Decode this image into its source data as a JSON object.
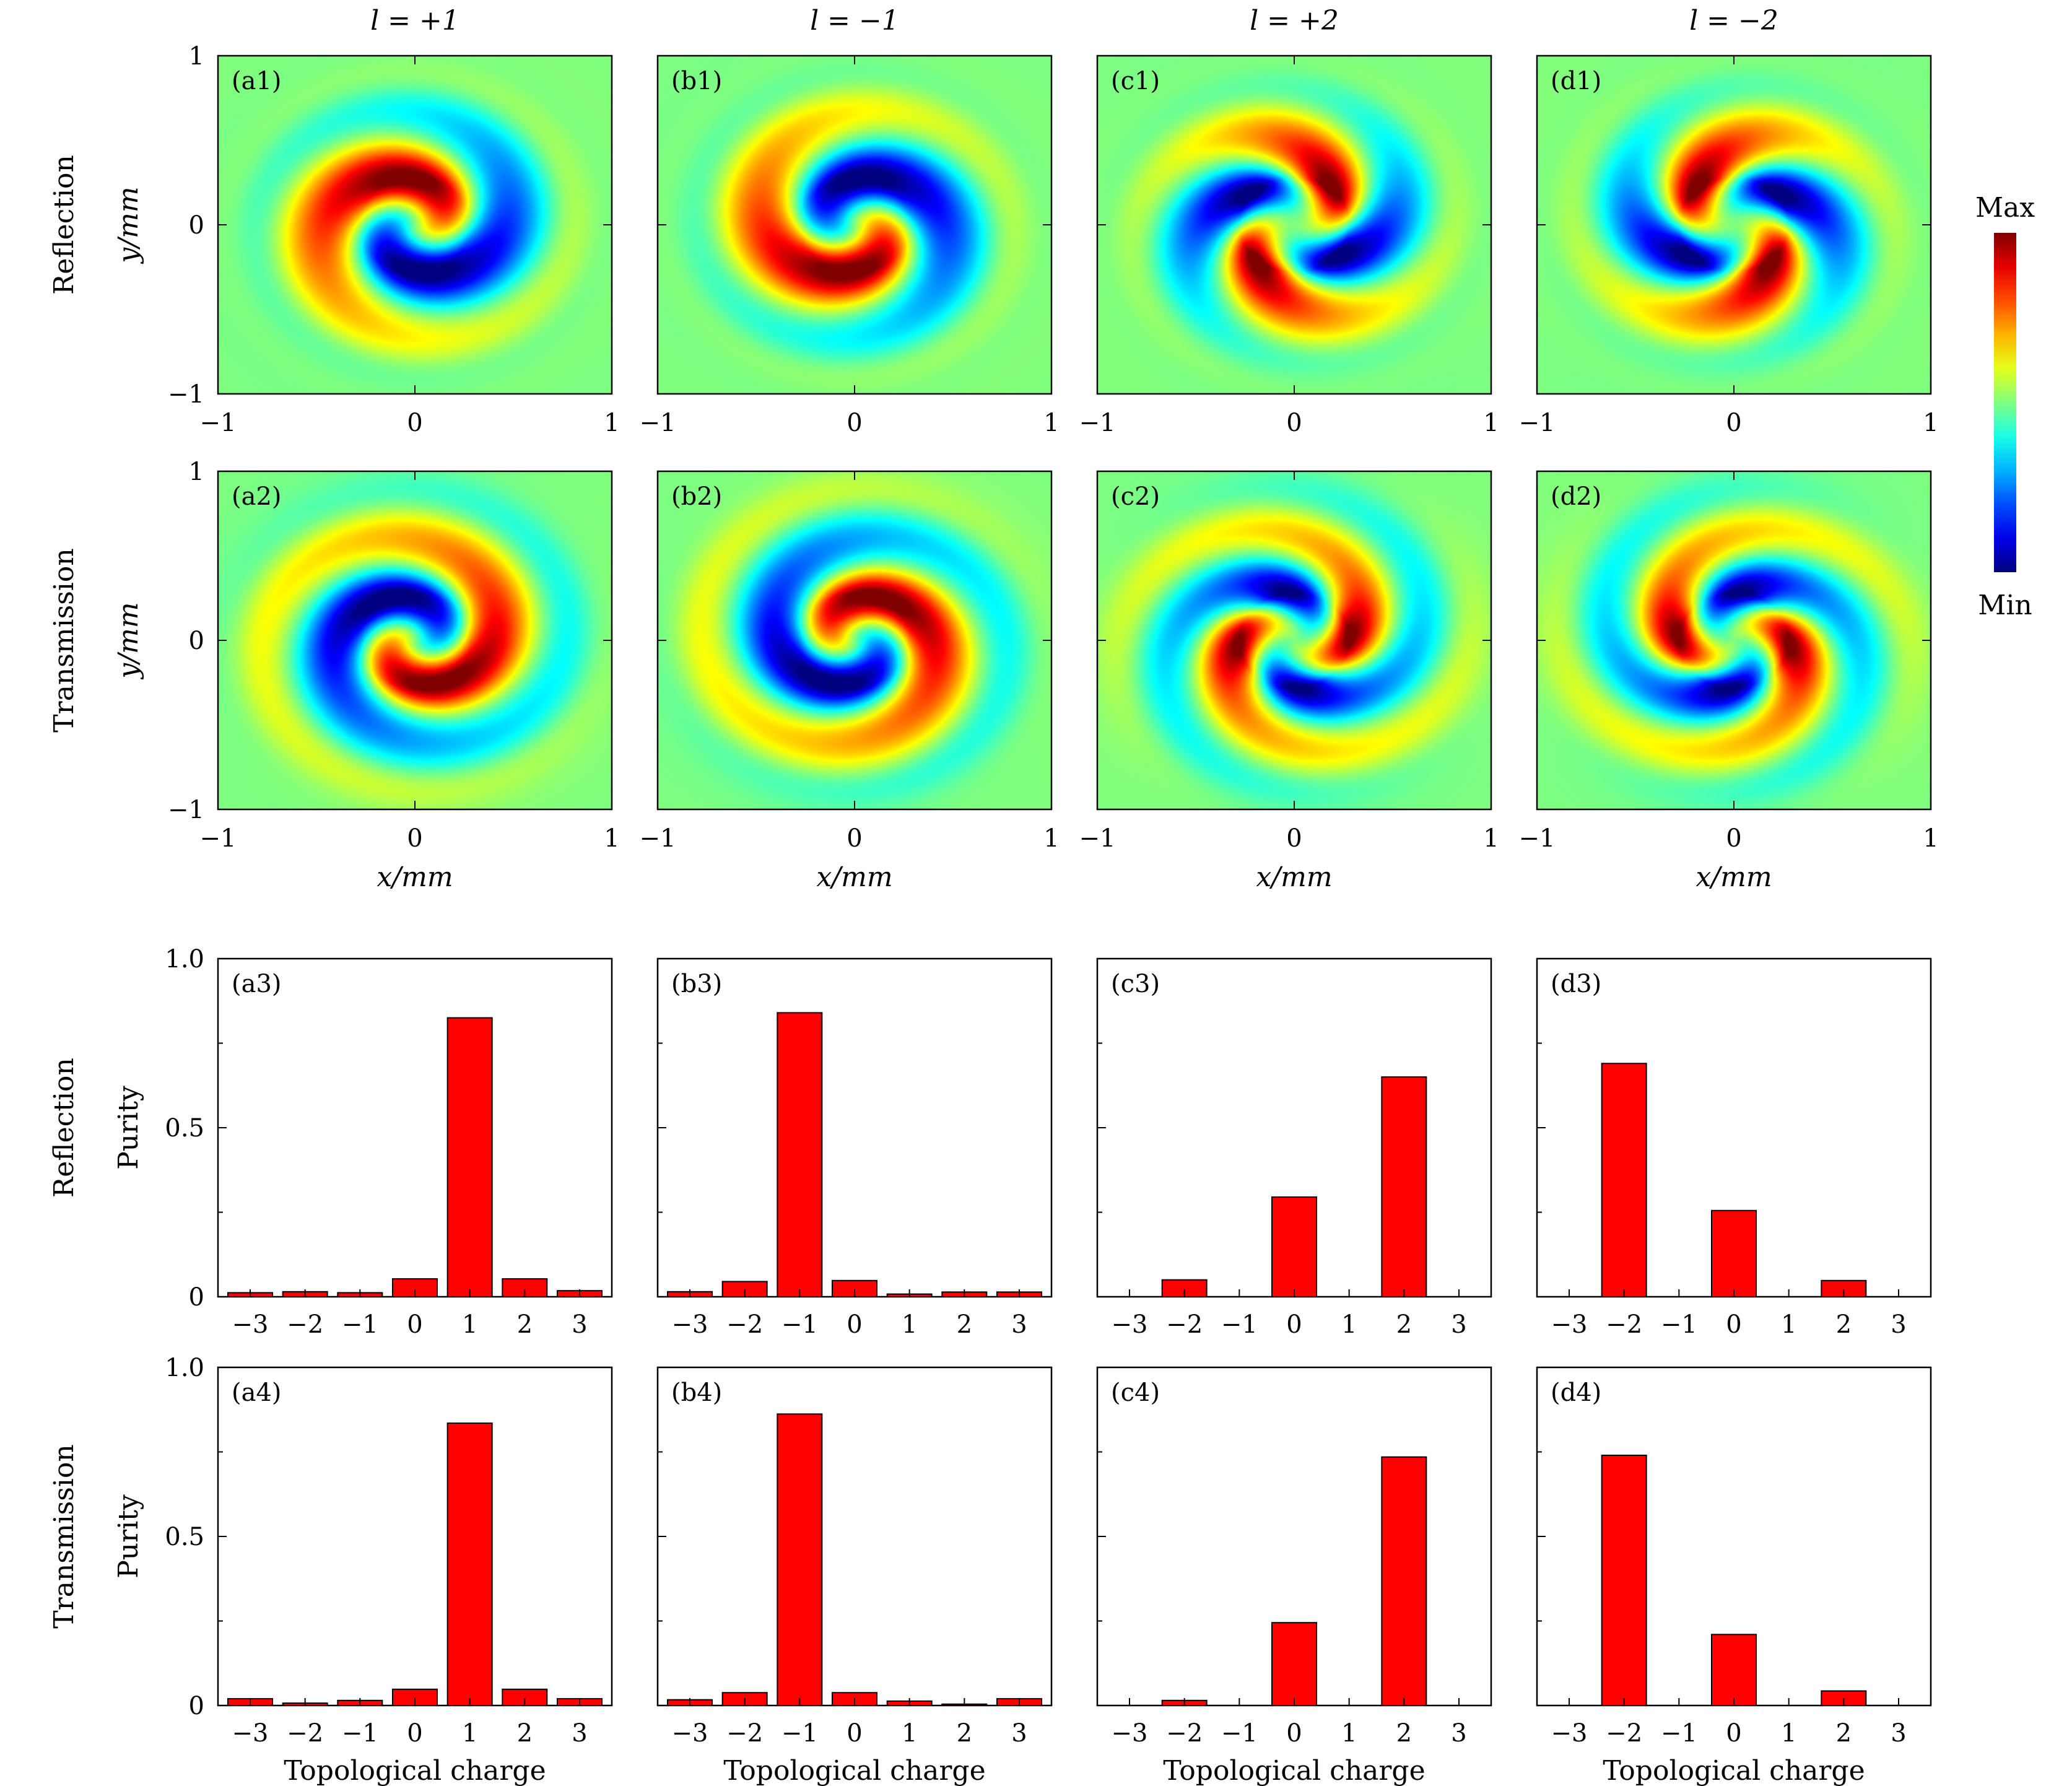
{
  "figure": {
    "column_headers": [
      "l = +1",
      "l = −1",
      "l = +2",
      "l = −2"
    ],
    "row_labels": [
      "Reflection",
      "Transmission",
      "Reflection",
      "Transmission"
    ],
    "colorbar": {
      "max_label": "Max",
      "min_label": "Min"
    },
    "field_axes": {
      "xlabel": "x/mm",
      "ylabel": "y/mm",
      "x_ticks": [
        "−1",
        "0",
        "1"
      ],
      "y_ticks": [
        "1",
        "0",
        "−1"
      ]
    },
    "bar_axes": {
      "xlabel": "Topological charge",
      "ylabel": "Purity",
      "x_ticks": [
        "−3",
        "−2",
        "−1",
        "0",
        "1",
        "2",
        "3"
      ],
      "y_ticks": [
        "1.0",
        "0.5",
        "0"
      ]
    },
    "field_panels": [
      {
        "label": "(a1)",
        "charge": 1,
        "mode": "reflection",
        "rotation_deg": 0
      },
      {
        "label": "(b1)",
        "charge": -1,
        "mode": "reflection",
        "rotation_deg": 0
      },
      {
        "label": "(c1)",
        "charge": 2,
        "mode": "reflection",
        "rotation_deg": 0
      },
      {
        "label": "(d1)",
        "charge": -2,
        "mode": "reflection",
        "rotation_deg": 0
      },
      {
        "label": "(a2)",
        "charge": 1,
        "mode": "transmission",
        "rotation_deg": 180
      },
      {
        "label": "(b2)",
        "charge": -1,
        "mode": "transmission",
        "rotation_deg": 180
      },
      {
        "label": "(c2)",
        "charge": 2,
        "mode": "transmission",
        "rotation_deg": 90
      },
      {
        "label": "(d2)",
        "charge": -2,
        "mode": "transmission",
        "rotation_deg": 90
      }
    ],
    "colors": {
      "bar_fill": "#ff0000",
      "bar_stroke": "#000000",
      "axis": "#000000"
    }
  },
  "chart_data": [
    {
      "type": "bar",
      "label": "(a3)",
      "title": "Reflection, l = +1",
      "categories": [
        "−3",
        "−2",
        "−1",
        "0",
        "1",
        "2",
        "3"
      ],
      "values": [
        0.012,
        0.015,
        0.012,
        0.053,
        0.825,
        0.053,
        0.018
      ],
      "xlabel": "Topological charge",
      "ylabel": "Purity",
      "ylim": [
        0,
        1.0
      ]
    },
    {
      "type": "bar",
      "label": "(b3)",
      "title": "Reflection, l = −1",
      "categories": [
        "−3",
        "−2",
        "−1",
        "0",
        "1",
        "2",
        "3"
      ],
      "values": [
        0.015,
        0.045,
        0.84,
        0.048,
        0.008,
        0.014,
        0.014
      ],
      "xlabel": "Topological charge",
      "ylabel": "Purity",
      "ylim": [
        0,
        1.0
      ]
    },
    {
      "type": "bar",
      "label": "(c3)",
      "title": "Reflection, l = +2",
      "categories": [
        "−3",
        "−2",
        "−1",
        "0",
        "1",
        "2",
        "3"
      ],
      "values": [
        0,
        0.05,
        0,
        0.295,
        0,
        0.65,
        0
      ],
      "xlabel": "Topological charge",
      "ylabel": "Purity",
      "ylim": [
        0,
        1.0
      ]
    },
    {
      "type": "bar",
      "label": "(d3)",
      "title": "Reflection, l = −2",
      "categories": [
        "−3",
        "−2",
        "−1",
        "0",
        "1",
        "2",
        "3"
      ],
      "values": [
        0,
        0.69,
        0,
        0.255,
        0,
        0.048,
        0
      ],
      "xlabel": "Topological charge",
      "ylabel": "Purity",
      "ylim": [
        0,
        1.0
      ]
    },
    {
      "type": "bar",
      "label": "(a4)",
      "title": "Transmission, l = +1",
      "categories": [
        "−3",
        "−2",
        "−1",
        "0",
        "1",
        "2",
        "3"
      ],
      "values": [
        0.02,
        0.007,
        0.015,
        0.048,
        0.835,
        0.048,
        0.02
      ],
      "xlabel": "Topological charge",
      "ylabel": "Purity",
      "ylim": [
        0,
        1.0
      ]
    },
    {
      "type": "bar",
      "label": "(b4)",
      "title": "Transmission, l = −1",
      "categories": [
        "−3",
        "−2",
        "−1",
        "0",
        "1",
        "2",
        "3"
      ],
      "values": [
        0.017,
        0.038,
        0.862,
        0.038,
        0.013,
        0.004,
        0.02
      ],
      "xlabel": "Topological charge",
      "ylabel": "Purity",
      "ylim": [
        0,
        1.0
      ]
    },
    {
      "type": "bar",
      "label": "(c4)",
      "title": "Transmission, l = +2",
      "categories": [
        "−3",
        "−2",
        "−1",
        "0",
        "1",
        "2",
        "3"
      ],
      "values": [
        0,
        0.015,
        0,
        0.245,
        0,
        0.735,
        0
      ],
      "xlabel": "Topological charge",
      "ylabel": "Purity",
      "ylim": [
        0,
        1.0
      ]
    },
    {
      "type": "bar",
      "label": "(d4)",
      "title": "Transmission, l = −2",
      "categories": [
        "−3",
        "−2",
        "−1",
        "0",
        "1",
        "2",
        "3"
      ],
      "values": [
        0,
        0.74,
        0,
        0.21,
        0,
        0.043,
        0
      ],
      "xlabel": "Topological charge",
      "ylabel": "Purity",
      "ylim": [
        0,
        1.0
      ]
    }
  ]
}
